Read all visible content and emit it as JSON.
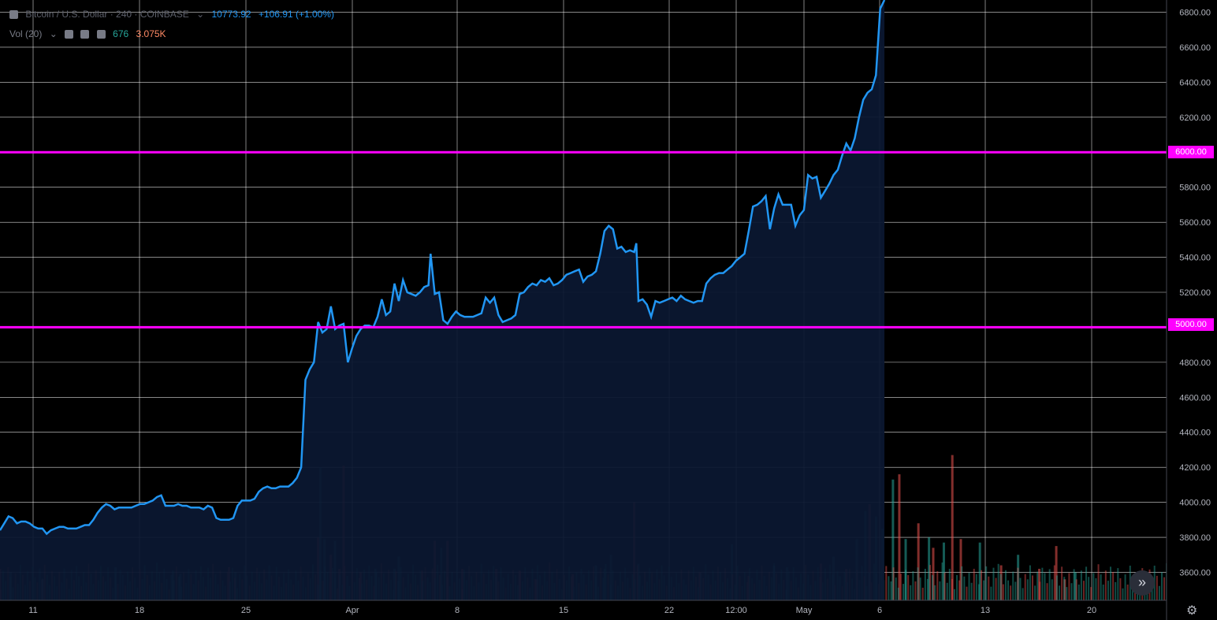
{
  "header": {
    "title": "Bitcoin / U.S. Dollar · 240 · COINBASE",
    "last_price": "10773.92",
    "change": "+106.91 (+1.00%)",
    "volume_label": "Vol (20)",
    "volume_value_1": "676",
    "volume_value_2": "3.075K"
  },
  "colors": {
    "background": "#000000",
    "grid": "#ffffff",
    "line": "#2196f3",
    "horizontal_levels": "#ff00ff",
    "volume_up": "#26a69a",
    "volume_down": "#ef5350"
  },
  "icons": [
    "chevron-down-icon",
    "eye-icon",
    "settings-icon",
    "close-icon",
    "double-chevron-right-icon",
    "gear-icon"
  ],
  "chart_data": {
    "type": "line",
    "x_tick_labels": [
      "11",
      "18",
      "25",
      "Apr",
      "8",
      "15",
      "22",
      "12:00",
      "May",
      "6",
      "13",
      "20"
    ],
    "y_tick_labels": [
      "3600.00",
      "3800.00",
      "4000.00",
      "4200.00",
      "4400.00",
      "4600.00",
      "4800.00",
      "5000.00",
      "5200.00",
      "5400.00",
      "5600.00",
      "5800.00",
      "6000.00",
      "6200.00",
      "6400.00",
      "6600.00",
      "6800.00"
    ],
    "ylim": [
      3440,
      6870
    ],
    "horizontal_levels": [
      {
        "value": 5000,
        "label": "5000.00"
      },
      {
        "value": 6000,
        "label": "6000.00"
      }
    ],
    "series": [
      {
        "points": [
          [
            0,
            3840
          ],
          [
            4,
            3880
          ],
          [
            8,
            3920
          ],
          [
            12,
            3910
          ],
          [
            16,
            3880
          ],
          [
            20,
            3890
          ],
          [
            24,
            3890
          ],
          [
            28,
            3880
          ],
          [
            32,
            3860
          ],
          [
            36,
            3850
          ],
          [
            40,
            3850
          ],
          [
            44,
            3820
          ],
          [
            48,
            3840
          ],
          [
            52,
            3850
          ],
          [
            56,
            3860
          ],
          [
            60,
            3860
          ],
          [
            64,
            3850
          ],
          [
            68,
            3850
          ],
          [
            72,
            3850
          ],
          [
            76,
            3860
          ],
          [
            80,
            3870
          ],
          [
            84,
            3870
          ],
          [
            88,
            3900
          ],
          [
            92,
            3940
          ],
          [
            96,
            3970
          ],
          [
            100,
            3990
          ],
          [
            104,
            3980
          ],
          [
            108,
            3960
          ],
          [
            112,
            3970
          ],
          [
            116,
            3970
          ],
          [
            120,
            3970
          ],
          [
            124,
            3970
          ],
          [
            128,
            3980
          ],
          [
            132,
            3990
          ],
          [
            136,
            3990
          ],
          [
            140,
            4000
          ],
          [
            144,
            4010
          ],
          [
            148,
            4030
          ],
          [
            152,
            4040
          ],
          [
            156,
            3980
          ],
          [
            160,
            3980
          ],
          [
            164,
            3980
          ],
          [
            168,
            3990
          ],
          [
            172,
            3980
          ],
          [
            176,
            3980
          ],
          [
            180,
            3970
          ],
          [
            184,
            3970
          ],
          [
            188,
            3970
          ],
          [
            192,
            3960
          ],
          [
            196,
            3980
          ],
          [
            200,
            3970
          ],
          [
            204,
            3910
          ],
          [
            208,
            3900
          ],
          [
            212,
            3900
          ],
          [
            216,
            3900
          ],
          [
            220,
            3910
          ],
          [
            224,
            3980
          ],
          [
            228,
            4010
          ],
          [
            232,
            4010
          ],
          [
            236,
            4010
          ],
          [
            240,
            4020
          ],
          [
            244,
            4060
          ],
          [
            248,
            4080
          ],
          [
            252,
            4090
          ],
          [
            256,
            4080
          ],
          [
            260,
            4080
          ],
          [
            264,
            4090
          ],
          [
            268,
            4090
          ],
          [
            272,
            4090
          ],
          [
            276,
            4110
          ],
          [
            280,
            4140
          ],
          [
            284,
            4200
          ],
          [
            286,
            4450
          ],
          [
            288,
            4700
          ],
          [
            292,
            4760
          ],
          [
            296,
            4800
          ],
          [
            300,
            5030
          ],
          [
            304,
            4970
          ],
          [
            308,
            4990
          ],
          [
            312,
            5120
          ],
          [
            316,
            4990
          ],
          [
            320,
            5010
          ],
          [
            324,
            5020
          ],
          [
            328,
            4800
          ],
          [
            332,
            4880
          ],
          [
            336,
            4950
          ],
          [
            340,
            4990
          ],
          [
            344,
            5010
          ],
          [
            348,
            5010
          ],
          [
            352,
            5000
          ],
          [
            356,
            5060
          ],
          [
            360,
            5160
          ],
          [
            364,
            5070
          ],
          [
            368,
            5090
          ],
          [
            372,
            5250
          ],
          [
            376,
            5150
          ],
          [
            380,
            5270
          ],
          [
            384,
            5200
          ],
          [
            388,
            5190
          ],
          [
            392,
            5180
          ],
          [
            396,
            5200
          ],
          [
            400,
            5230
          ],
          [
            404,
            5240
          ],
          [
            406,
            5420
          ],
          [
            410,
            5190
          ],
          [
            414,
            5200
          ],
          [
            418,
            5040
          ],
          [
            422,
            5020
          ],
          [
            426,
            5060
          ],
          [
            430,
            5090
          ],
          [
            434,
            5070
          ],
          [
            438,
            5060
          ],
          [
            442,
            5060
          ],
          [
            446,
            5060
          ],
          [
            450,
            5070
          ],
          [
            454,
            5080
          ],
          [
            458,
            5170
          ],
          [
            462,
            5140
          ],
          [
            466,
            5170
          ],
          [
            470,
            5070
          ],
          [
            474,
            5030
          ],
          [
            478,
            5040
          ],
          [
            482,
            5050
          ],
          [
            486,
            5070
          ],
          [
            490,
            5190
          ],
          [
            494,
            5200
          ],
          [
            498,
            5230
          ],
          [
            502,
            5250
          ],
          [
            506,
            5240
          ],
          [
            510,
            5270
          ],
          [
            514,
            5260
          ],
          [
            518,
            5280
          ],
          [
            522,
            5240
          ],
          [
            526,
            5250
          ],
          [
            530,
            5270
          ],
          [
            534,
            5300
          ],
          [
            538,
            5310
          ],
          [
            542,
            5320
          ],
          [
            546,
            5330
          ],
          [
            550,
            5260
          ],
          [
            554,
            5290
          ],
          [
            558,
            5300
          ],
          [
            562,
            5320
          ],
          [
            566,
            5420
          ],
          [
            570,
            5550
          ],
          [
            574,
            5580
          ],
          [
            578,
            5560
          ],
          [
            582,
            5450
          ],
          [
            586,
            5460
          ],
          [
            590,
            5430
          ],
          [
            594,
            5440
          ],
          [
            598,
            5430
          ],
          [
            600,
            5480
          ],
          [
            602,
            5150
          ],
          [
            606,
            5160
          ],
          [
            610,
            5130
          ],
          [
            614,
            5060
          ],
          [
            618,
            5150
          ],
          [
            622,
            5140
          ],
          [
            626,
            5150
          ],
          [
            630,
            5160
          ],
          [
            634,
            5170
          ],
          [
            638,
            5150
          ],
          [
            642,
            5180
          ],
          [
            646,
            5160
          ],
          [
            650,
            5150
          ],
          [
            654,
            5140
          ],
          [
            658,
            5150
          ],
          [
            662,
            5150
          ],
          [
            666,
            5250
          ],
          [
            670,
            5280
          ],
          [
            674,
            5300
          ],
          [
            678,
            5310
          ],
          [
            682,
            5310
          ],
          [
            686,
            5330
          ],
          [
            690,
            5350
          ],
          [
            694,
            5380
          ],
          [
            698,
            5400
          ],
          [
            702,
            5420
          ],
          [
            706,
            5550
          ],
          [
            710,
            5690
          ],
          [
            714,
            5700
          ],
          [
            718,
            5720
          ],
          [
            722,
            5750
          ],
          [
            726,
            5560
          ],
          [
            730,
            5680
          ],
          [
            734,
            5760
          ],
          [
            738,
            5700
          ],
          [
            742,
            5700
          ],
          [
            746,
            5700
          ],
          [
            750,
            5580
          ],
          [
            754,
            5640
          ],
          [
            758,
            5670
          ],
          [
            762,
            5870
          ],
          [
            766,
            5850
          ],
          [
            770,
            5860
          ],
          [
            774,
            5740
          ],
          [
            778,
            5780
          ],
          [
            782,
            5820
          ],
          [
            786,
            5870
          ],
          [
            790,
            5900
          ],
          [
            794,
            5980
          ],
          [
            798,
            6050
          ],
          [
            802,
            6010
          ],
          [
            806,
            6080
          ],
          [
            810,
            6200
          ],
          [
            814,
            6300
          ],
          [
            818,
            6340
          ],
          [
            822,
            6360
          ],
          [
            826,
            6440
          ],
          [
            830,
            6820
          ],
          [
            834,
            6870
          ]
        ]
      }
    ],
    "volume": {
      "bars": [
        [
          0,
          3620,
          "down"
        ],
        [
          10,
          3600,
          "up"
        ],
        [
          40,
          3560,
          "down"
        ],
        [
          109,
          3630,
          "up"
        ],
        [
          163,
          3610,
          "up"
        ],
        [
          170,
          3590,
          "up"
        ],
        [
          216,
          3630,
          "down"
        ],
        [
          222,
          3600,
          "up"
        ],
        [
          300,
          3800,
          "down"
        ],
        [
          302,
          4200,
          "up"
        ],
        [
          306,
          3790,
          "up"
        ],
        [
          312,
          3700,
          "down"
        ],
        [
          316,
          3780,
          "up"
        ],
        [
          320,
          3620,
          "down"
        ],
        [
          324,
          4210,
          "down"
        ],
        [
          340,
          3600,
          "down"
        ],
        [
          354,
          3620,
          "up"
        ],
        [
          372,
          3620,
          "up"
        ],
        [
          376,
          3690,
          "up"
        ],
        [
          398,
          3610,
          "down"
        ],
        [
          410,
          3780,
          "down"
        ],
        [
          416,
          3740,
          "up"
        ],
        [
          422,
          3780,
          "down"
        ],
        [
          436,
          3620,
          "down"
        ],
        [
          468,
          3620,
          "down"
        ],
        [
          490,
          3610,
          "down"
        ],
        [
          506,
          3560,
          "down"
        ],
        [
          540,
          3590,
          "down"
        ],
        [
          562,
          3640,
          "up"
        ],
        [
          570,
          3620,
          "up"
        ],
        [
          576,
          3700,
          "up"
        ],
        [
          598,
          4000,
          "down"
        ],
        [
          602,
          3650,
          "up"
        ],
        [
          660,
          3600,
          "down"
        ],
        [
          690,
          3760,
          "up"
        ],
        [
          706,
          3580,
          "down"
        ],
        [
          730,
          3640,
          "up"
        ],
        [
          742,
          3630,
          "up"
        ],
        [
          774,
          3650,
          "down"
        ],
        [
          786,
          3690,
          "up"
        ],
        [
          798,
          3620,
          "down"
        ],
        [
          808,
          3790,
          "up"
        ],
        [
          816,
          3950,
          "up"
        ],
        [
          820,
          3990,
          "down"
        ],
        [
          826,
          3920,
          "up"
        ],
        [
          832,
          3850,
          "up"
        ],
        [
          842,
          4130,
          "up"
        ],
        [
          848,
          4160,
          "down"
        ],
        [
          854,
          3790,
          "up"
        ],
        [
          866,
          3880,
          "down"
        ],
        [
          876,
          3800,
          "up"
        ],
        [
          880,
          3740,
          "down"
        ],
        [
          890,
          3770,
          "up"
        ],
        [
          898,
          4270,
          "down"
        ],
        [
          906,
          3790,
          "down"
        ],
        [
          924,
          3770,
          "up"
        ],
        [
          944,
          3640,
          "down"
        ],
        [
          960,
          3700,
          "up"
        ],
        [
          980,
          3620,
          "down"
        ],
        [
          996,
          3750,
          "down"
        ],
        [
          1004,
          3560,
          "down"
        ],
        [
          1014,
          3600,
          "up"
        ]
      ]
    },
    "x_range": [
      0,
      1100
    ]
  }
}
